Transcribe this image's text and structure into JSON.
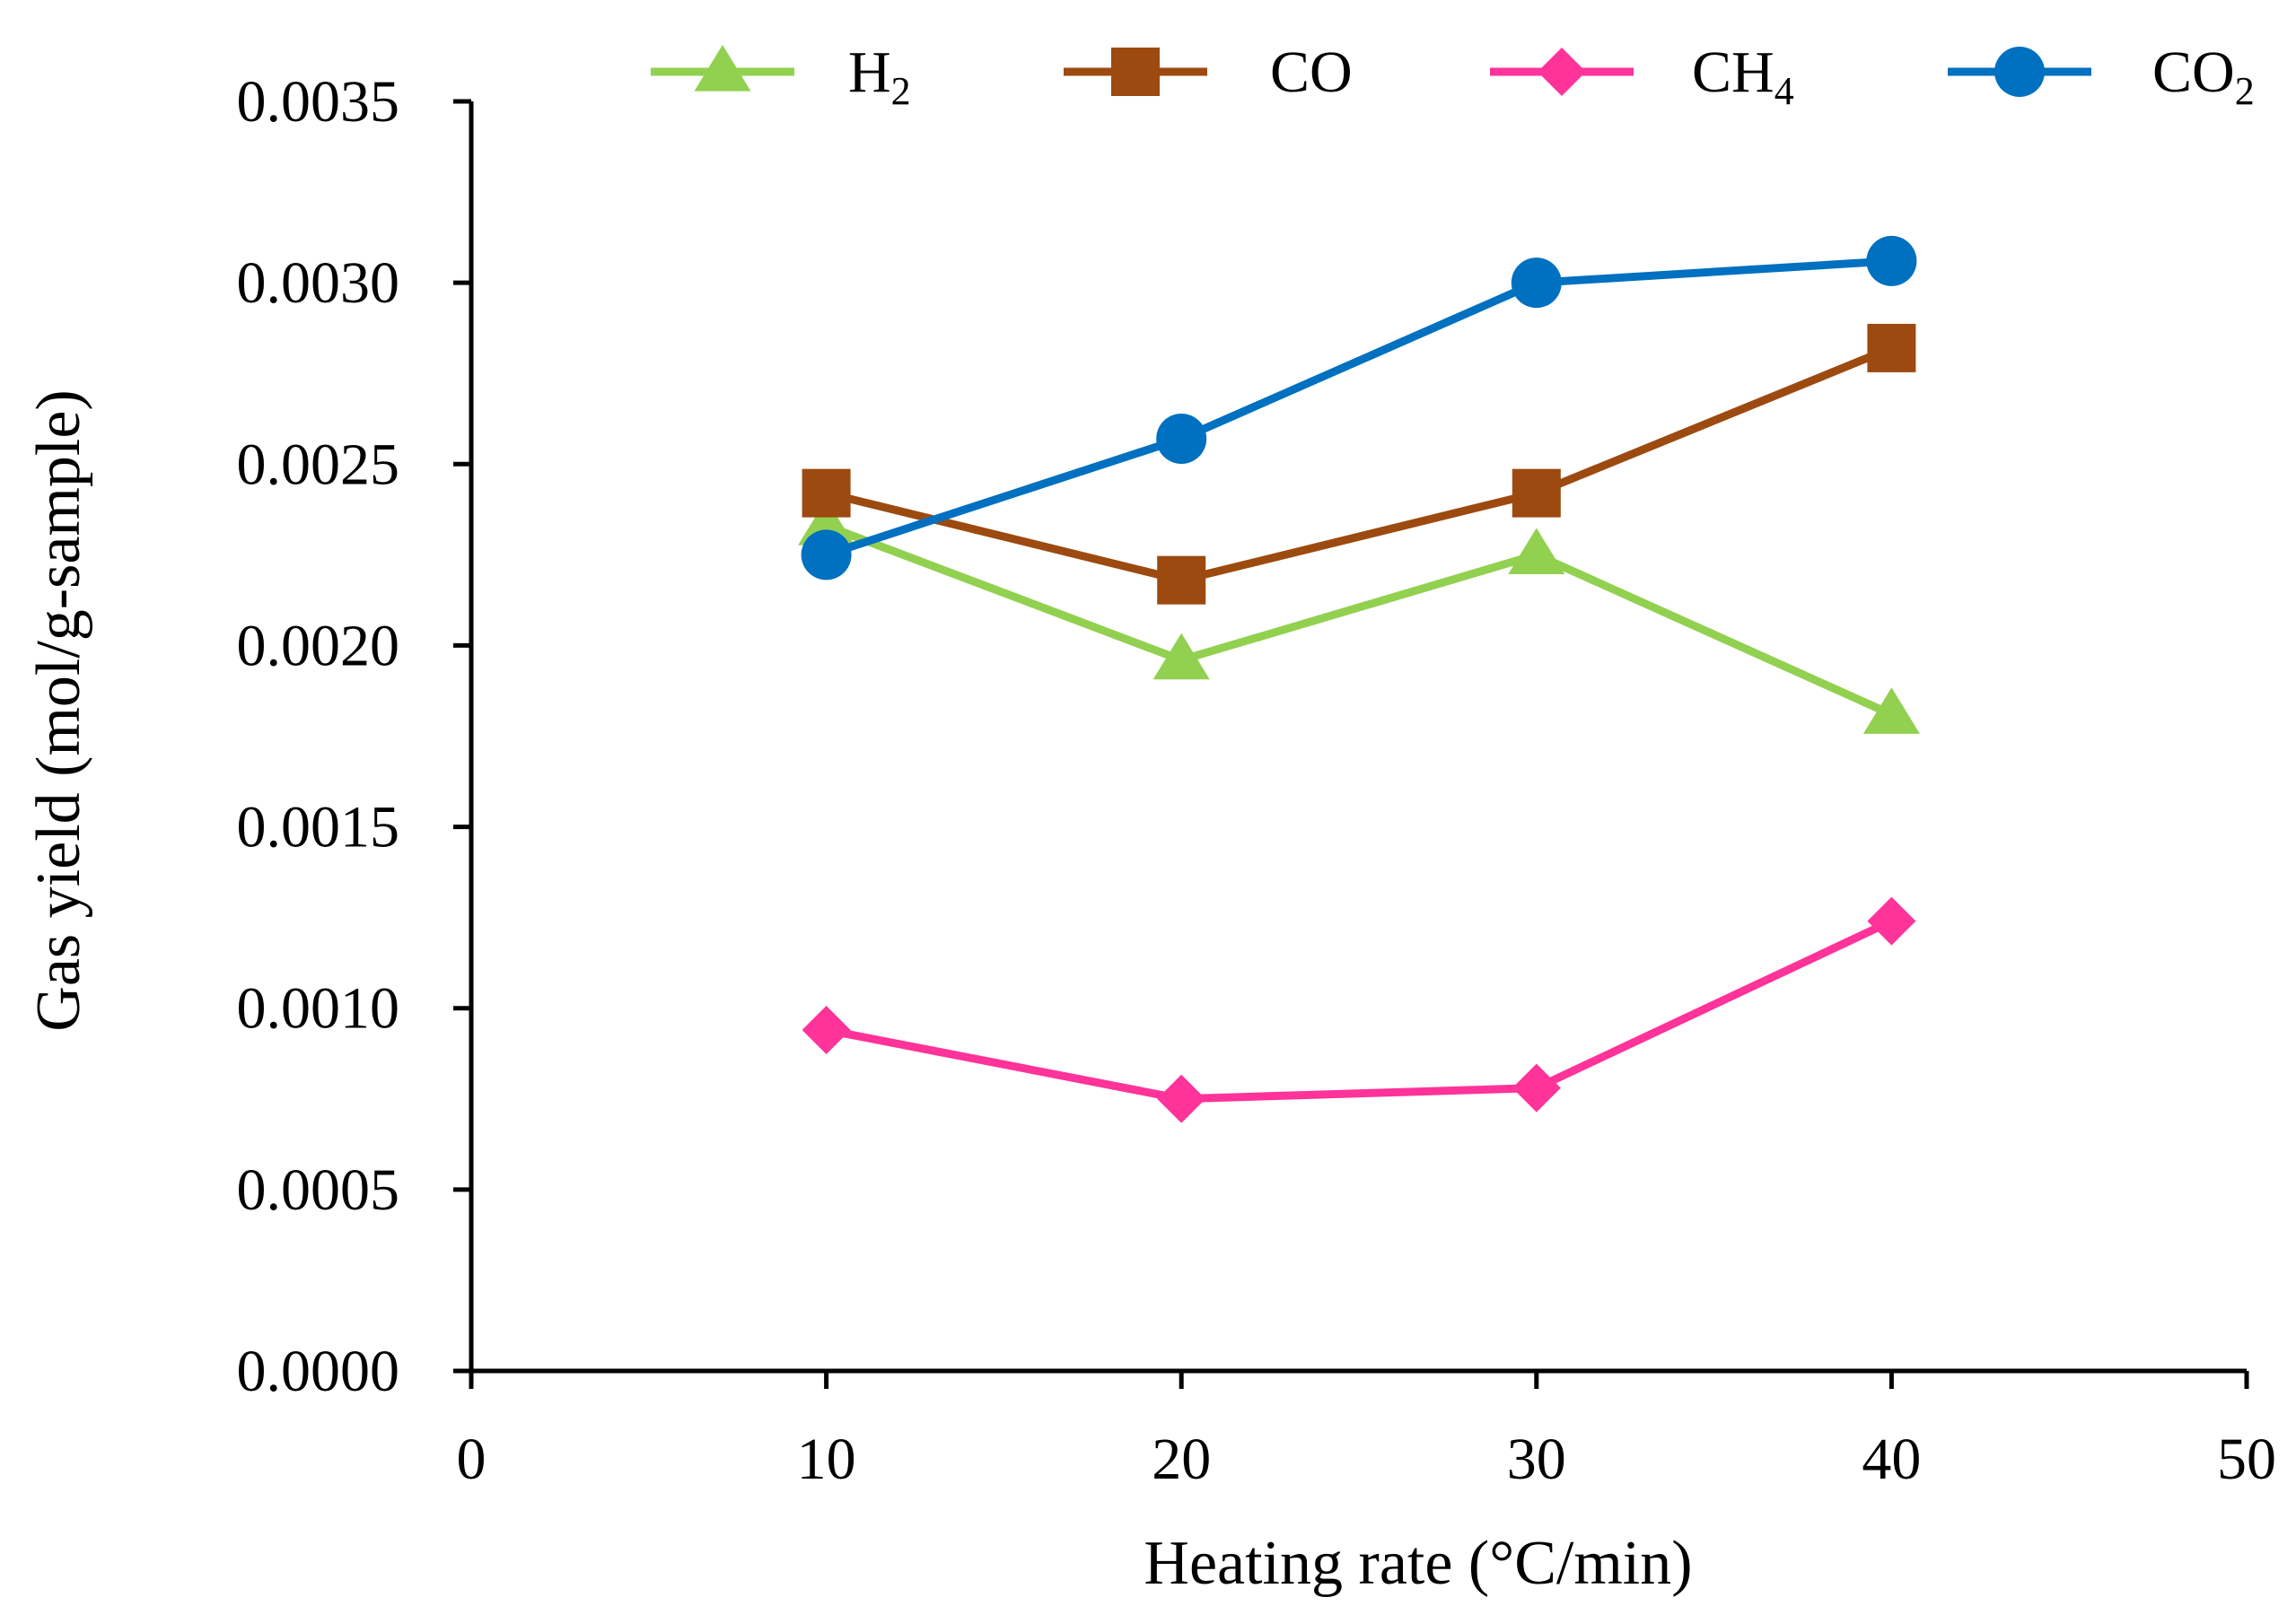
{
  "chart_data": {
    "type": "line",
    "title": "",
    "xlabel": "Heating rate (°C/min)",
    "ylabel": "Gas yield (mol/g-sample)",
    "xlim": [
      0,
      50
    ],
    "ylim": [
      0,
      0.0035
    ],
    "x_ticks": [
      0,
      10,
      20,
      30,
      40,
      50
    ],
    "x_tick_labels": [
      "0",
      "10",
      "20",
      "30",
      "40",
      "50"
    ],
    "y_ticks": [
      0,
      0.0005,
      0.001,
      0.0015,
      0.002,
      0.0025,
      0.003,
      0.0035
    ],
    "y_tick_labels": [
      "0.0000",
      "0.0005",
      "0.0010",
      "0.0015",
      "0.0020",
      "0.0025",
      "0.0030",
      "0.0035"
    ],
    "grid": false,
    "legend_position": "top",
    "x": [
      10,
      20,
      30,
      40
    ],
    "series": [
      {
        "name": "H2",
        "label_main": "H",
        "label_sub": "2",
        "color": "#92D050",
        "marker": "triangle",
        "values": [
          0.00233,
          0.00196,
          0.00225,
          0.00181
        ]
      },
      {
        "name": "CO",
        "label_main": "CO",
        "label_sub": "",
        "color": "#9C4A10",
        "marker": "square",
        "values": [
          0.00242,
          0.00218,
          0.00242,
          0.00282
        ]
      },
      {
        "name": "CH4",
        "label_main": "CH",
        "label_sub": "4",
        "color": "#FF3399",
        "marker": "diamond",
        "values": [
          0.00094,
          0.00075,
          0.00078,
          0.00124
        ]
      },
      {
        "name": "CO2",
        "label_main": "CO",
        "label_sub": "2",
        "color": "#0070C0",
        "marker": "circle",
        "values": [
          0.00225,
          0.00257,
          0.003,
          0.00306
        ]
      }
    ]
  }
}
